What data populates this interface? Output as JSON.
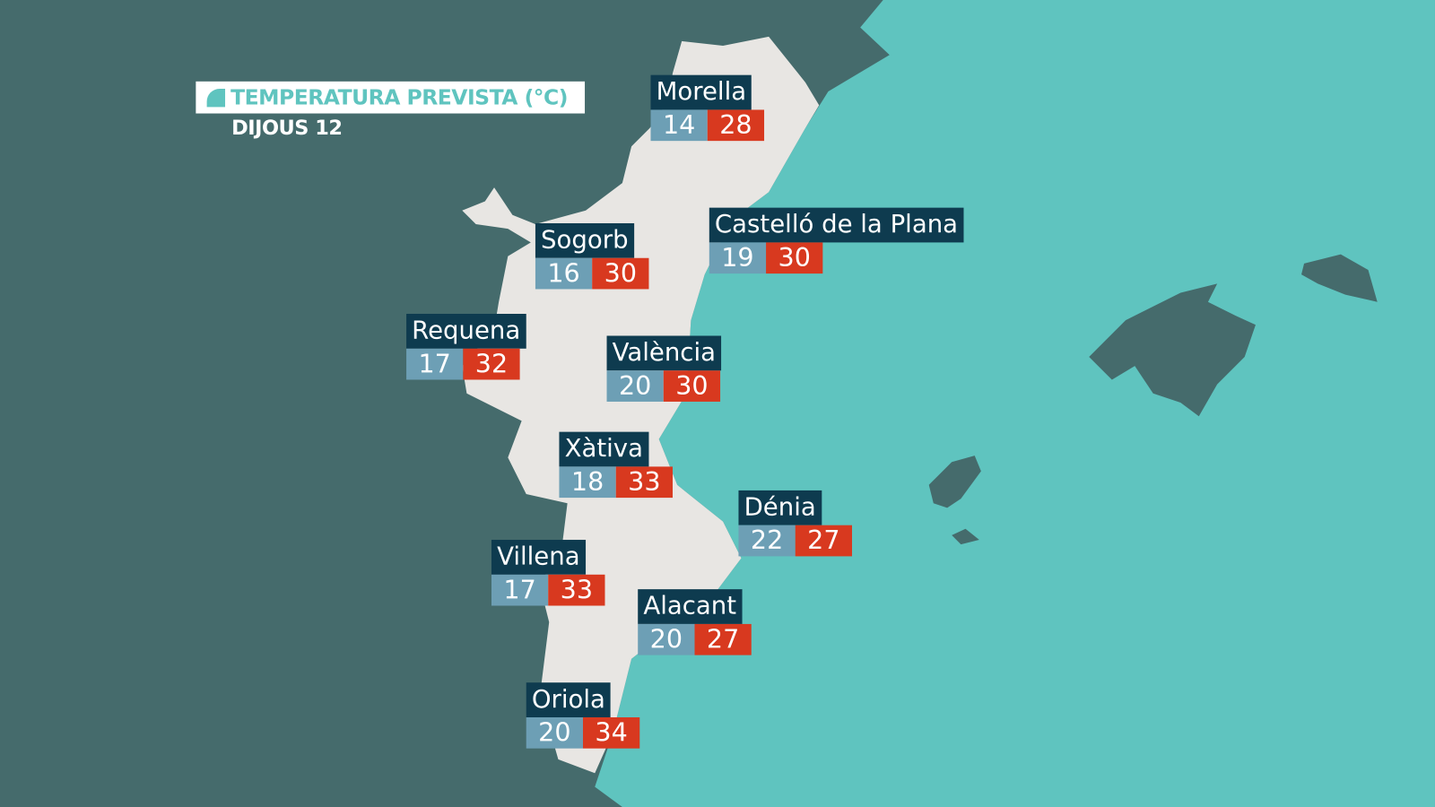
{
  "header": {
    "title": "TEMPERATURA PREVISTA (°C)",
    "date": "DIJOUS 12"
  },
  "colors": {
    "land": "#456b6c",
    "sea": "#5fc4bf",
    "region": "#e8e6e3",
    "label": "#0e3b4f",
    "min": "#6d9fb5",
    "max": "#d8391f"
  },
  "cities": [
    {
      "name": "Morella",
      "min": "14",
      "max": "28"
    },
    {
      "name": "Castelló de la Plana",
      "min": "19",
      "max": "30"
    },
    {
      "name": "Sogorb",
      "min": "16",
      "max": "30"
    },
    {
      "name": "Requena",
      "min": "17",
      "max": "32"
    },
    {
      "name": "València",
      "min": "20",
      "max": "30"
    },
    {
      "name": "Xàtiva",
      "min": "18",
      "max": "33"
    },
    {
      "name": "Dénia",
      "min": "22",
      "max": "27"
    },
    {
      "name": "Villena",
      "min": "17",
      "max": "33"
    },
    {
      "name": "Alacant",
      "min": "20",
      "max": "27"
    },
    {
      "name": "Oriola",
      "min": "20",
      "max": "34"
    }
  ]
}
